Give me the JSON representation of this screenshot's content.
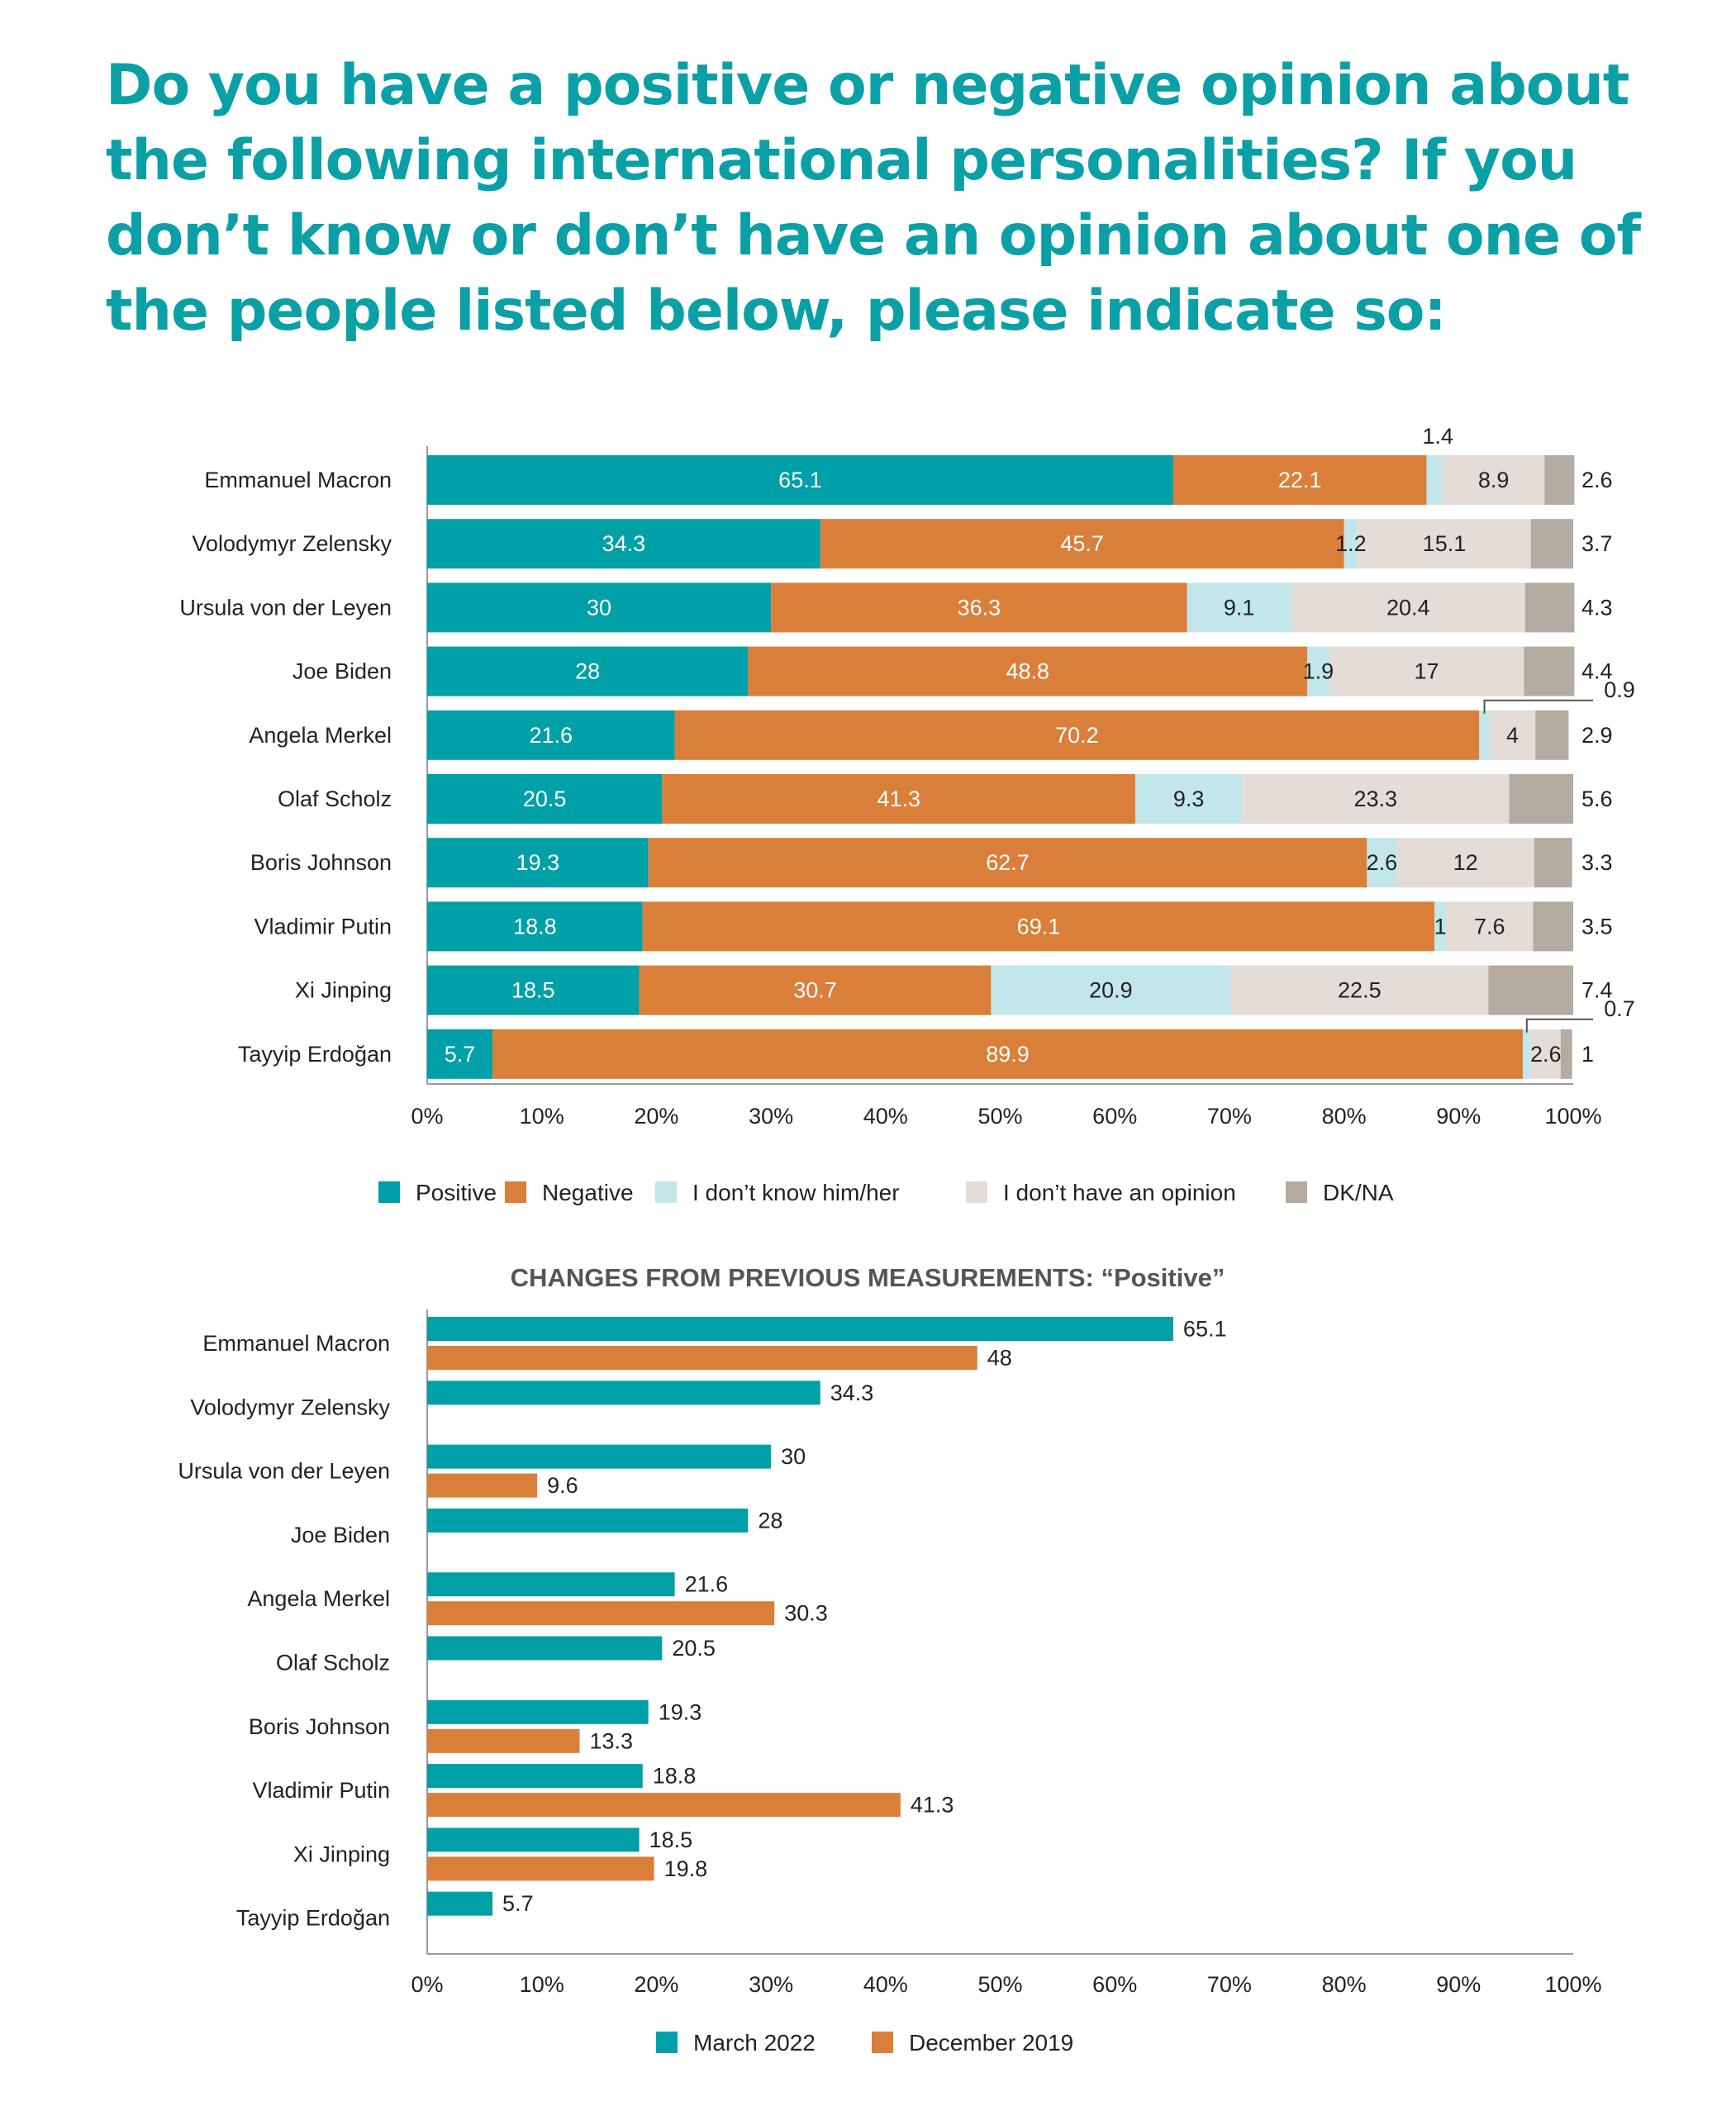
{
  "title_lines": [
    "Do you have a positive or negative opinion about",
    "the following international personalities? If you",
    "don’t know or don’t have an opinion about one of",
    "the people listed below, please indicate so:"
  ],
  "colors": {
    "positive": "#00a0a8",
    "negative": "#d97f3a",
    "dont_know": "#c3e6ea",
    "no_opinion": "#e4dcd7",
    "dkna": "#b5aaa0",
    "title": "#0aa0a6"
  },
  "chart_data": [
    {
      "type": "bar",
      "orientation": "horizontal",
      "stacked": true,
      "title": "",
      "categories": [
        "Emmanuel Macron",
        "Volodymyr Zelensky",
        "Ursula von der Leyen",
        "Joe Biden",
        "Angela Merkel",
        "Olaf Scholz",
        "Boris Johnson",
        "Vladimir Putin",
        "Xi Jinping",
        "Tayyip Erdoğan"
      ],
      "series": [
        {
          "name": "Positive",
          "values": [
            65.1,
            34.3,
            30,
            28,
            21.6,
            20.5,
            19.3,
            18.8,
            18.5,
            5.7
          ]
        },
        {
          "name": "Negative",
          "values": [
            22.1,
            45.7,
            36.3,
            48.8,
            70.2,
            41.3,
            62.7,
            69.1,
            30.7,
            89.9
          ]
        },
        {
          "name": "I don’t know him/her",
          "values": [
            1.4,
            1.2,
            9.1,
            1.9,
            0.9,
            9.3,
            2.6,
            1,
            20.9,
            0.7
          ]
        },
        {
          "name": "I don’t have an opinion",
          "values": [
            8.9,
            15.1,
            20.4,
            17,
            4,
            23.3,
            12,
            7.6,
            22.5,
            2.6
          ]
        },
        {
          "name": "DK/NA",
          "values": [
            2.6,
            3.7,
            4.3,
            4.4,
            2.9,
            5.6,
            3.3,
            3.5,
            7.4,
            1
          ]
        }
      ],
      "xlim": [
        0,
        100
      ],
      "x_ticks": [
        "0%",
        "10%",
        "20%",
        "30%",
        "40%",
        "50%",
        "60%",
        "70%",
        "80%",
        "90%",
        "100%"
      ],
      "legend": "bottom",
      "grid": false
    },
    {
      "type": "bar",
      "orientation": "horizontal",
      "stacked": false,
      "title": "CHANGES FROM PREVIOUS MEASUREMENTS: “Positive”",
      "categories": [
        "Emmanuel Macron",
        "Volodymyr Zelensky",
        "Ursula von der Leyen",
        "Joe Biden",
        "Angela Merkel",
        "Olaf Scholz",
        "Boris Johnson",
        "Vladimir Putin",
        "Xi Jinping",
        "Tayyip Erdoğan"
      ],
      "series": [
        {
          "name": "March 2022",
          "values": [
            65.1,
            34.3,
            30,
            28,
            21.6,
            20.5,
            19.3,
            18.8,
            18.5,
            5.7
          ]
        },
        {
          "name": "December 2019",
          "values": [
            48,
            null,
            9.6,
            null,
            30.3,
            null,
            13.3,
            41.3,
            19.8,
            null
          ]
        }
      ],
      "xlim": [
        0,
        100
      ],
      "x_ticks": [
        "0%",
        "10%",
        "20%",
        "30%",
        "40%",
        "50%",
        "60%",
        "70%",
        "80%",
        "90%",
        "100%"
      ],
      "legend": "bottom",
      "grid": false
    }
  ]
}
